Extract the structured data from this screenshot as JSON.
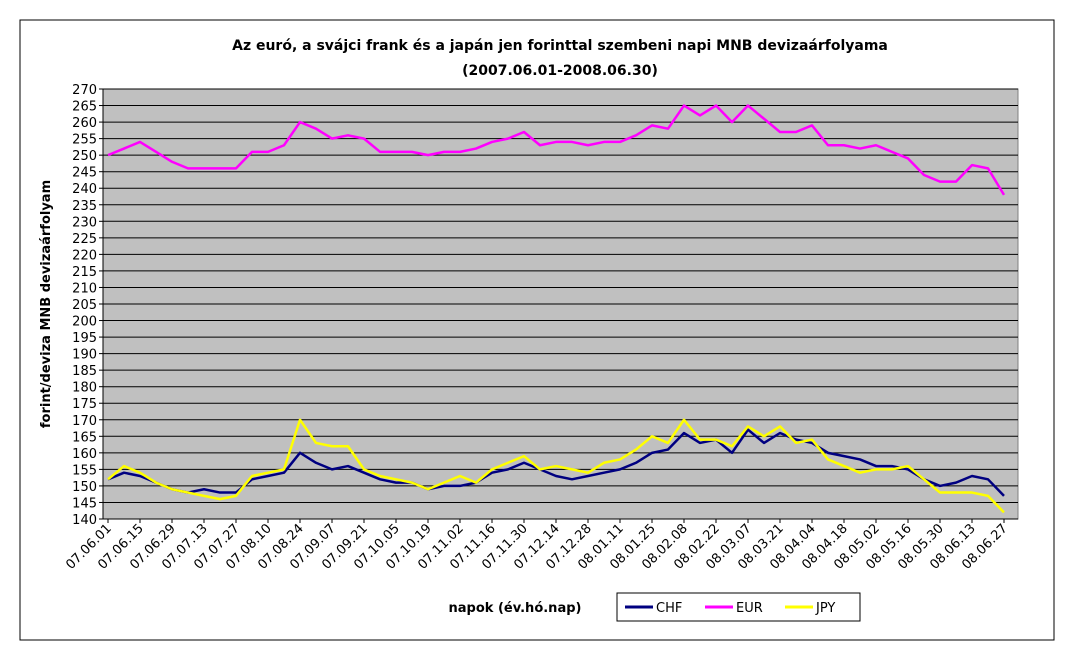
{
  "chart_data": {
    "type": "line",
    "title": "Az euró, a svájci frank és a japán jen forinttal szembeni napi MNB devizaárfolyama",
    "subtitle": "(2007.06.01-2008.06.30)",
    "y_label": "forint/deviza MNB devizaárfolyam",
    "x_label": "napok (év.hó.nap)",
    "categories": [
      "07.06.01",
      null,
      "07.06.15",
      null,
      "07.06.29",
      null,
      "07.07.13",
      null,
      "07.07.27",
      null,
      "07.08.10",
      null,
      "07.08.24",
      null,
      "07.09.07",
      null,
      "07.09.21",
      null,
      "07.10.05",
      null,
      "07.10.19",
      null,
      "07.11.02",
      null,
      "07.11.16",
      null,
      "07.11.30",
      null,
      "07.12.14",
      null,
      "07.12.28",
      null,
      "08.01.11",
      null,
      "08.01.25",
      null,
      "08.02.08",
      null,
      "08.02.22",
      null,
      "08.03.07",
      null,
      "08.03.21",
      null,
      "08.04.04",
      null,
      "08.04.18",
      null,
      "08.05.02",
      null,
      "08.05.16",
      null,
      "08.05.30",
      null,
      "08.06.13",
      null,
      "08.06.27"
    ],
    "series": [
      {
        "name": "CHF",
        "color": "#000080",
        "values": [
          152,
          154,
          153,
          151,
          149,
          148,
          149,
          148,
          148,
          152,
          153,
          154,
          160,
          157,
          155,
          156,
          154,
          152,
          151,
          151,
          149,
          150,
          150,
          151,
          154,
          155,
          157,
          155,
          153,
          152,
          153,
          154,
          155,
          157,
          160,
          161,
          166,
          163,
          164,
          160,
          167,
          163,
          166,
          164,
          163,
          160,
          159,
          158,
          156,
          156,
          155,
          152,
          150,
          151,
          153,
          152,
          147
        ]
      },
      {
        "name": "EUR",
        "color": "#ff00ff",
        "values": [
          250,
          252,
          254,
          251,
          248,
          246,
          246,
          246,
          246,
          251,
          251,
          253,
          260,
          258,
          255,
          256,
          255,
          251,
          251,
          251,
          250,
          251,
          251,
          252,
          254,
          255,
          257,
          253,
          254,
          254,
          253,
          254,
          254,
          256,
          259,
          258,
          265,
          262,
          265,
          260,
          265,
          261,
          257,
          257,
          259,
          253,
          253,
          252,
          253,
          251,
          249,
          244,
          242,
          242,
          247,
          246,
          238
        ]
      },
      {
        "name": "JPY",
        "color": "#ffff00",
        "values": [
          152,
          156,
          154,
          151,
          149,
          148,
          147,
          146,
          147,
          153,
          154,
          155,
          170,
          163,
          162,
          162,
          155,
          153,
          152,
          151,
          149,
          151,
          153,
          151,
          155,
          157,
          159,
          155,
          156,
          155,
          154,
          157,
          158,
          161,
          165,
          163,
          170,
          164,
          164,
          162,
          168,
          165,
          168,
          163,
          164,
          158,
          156,
          154,
          155,
          155,
          156,
          152,
          148,
          148,
          148,
          147,
          142
        ]
      }
    ],
    "ylim": [
      140,
      270
    ],
    "yticks": [
      140,
      145,
      150,
      155,
      160,
      165,
      170,
      175,
      180,
      185,
      190,
      195,
      200,
      205,
      210,
      215,
      220,
      225,
      230,
      235,
      240,
      245,
      250,
      255,
      260,
      265,
      270
    ],
    "grid": true,
    "legend": "bottom",
    "plot_background": "#c0c0c0"
  }
}
